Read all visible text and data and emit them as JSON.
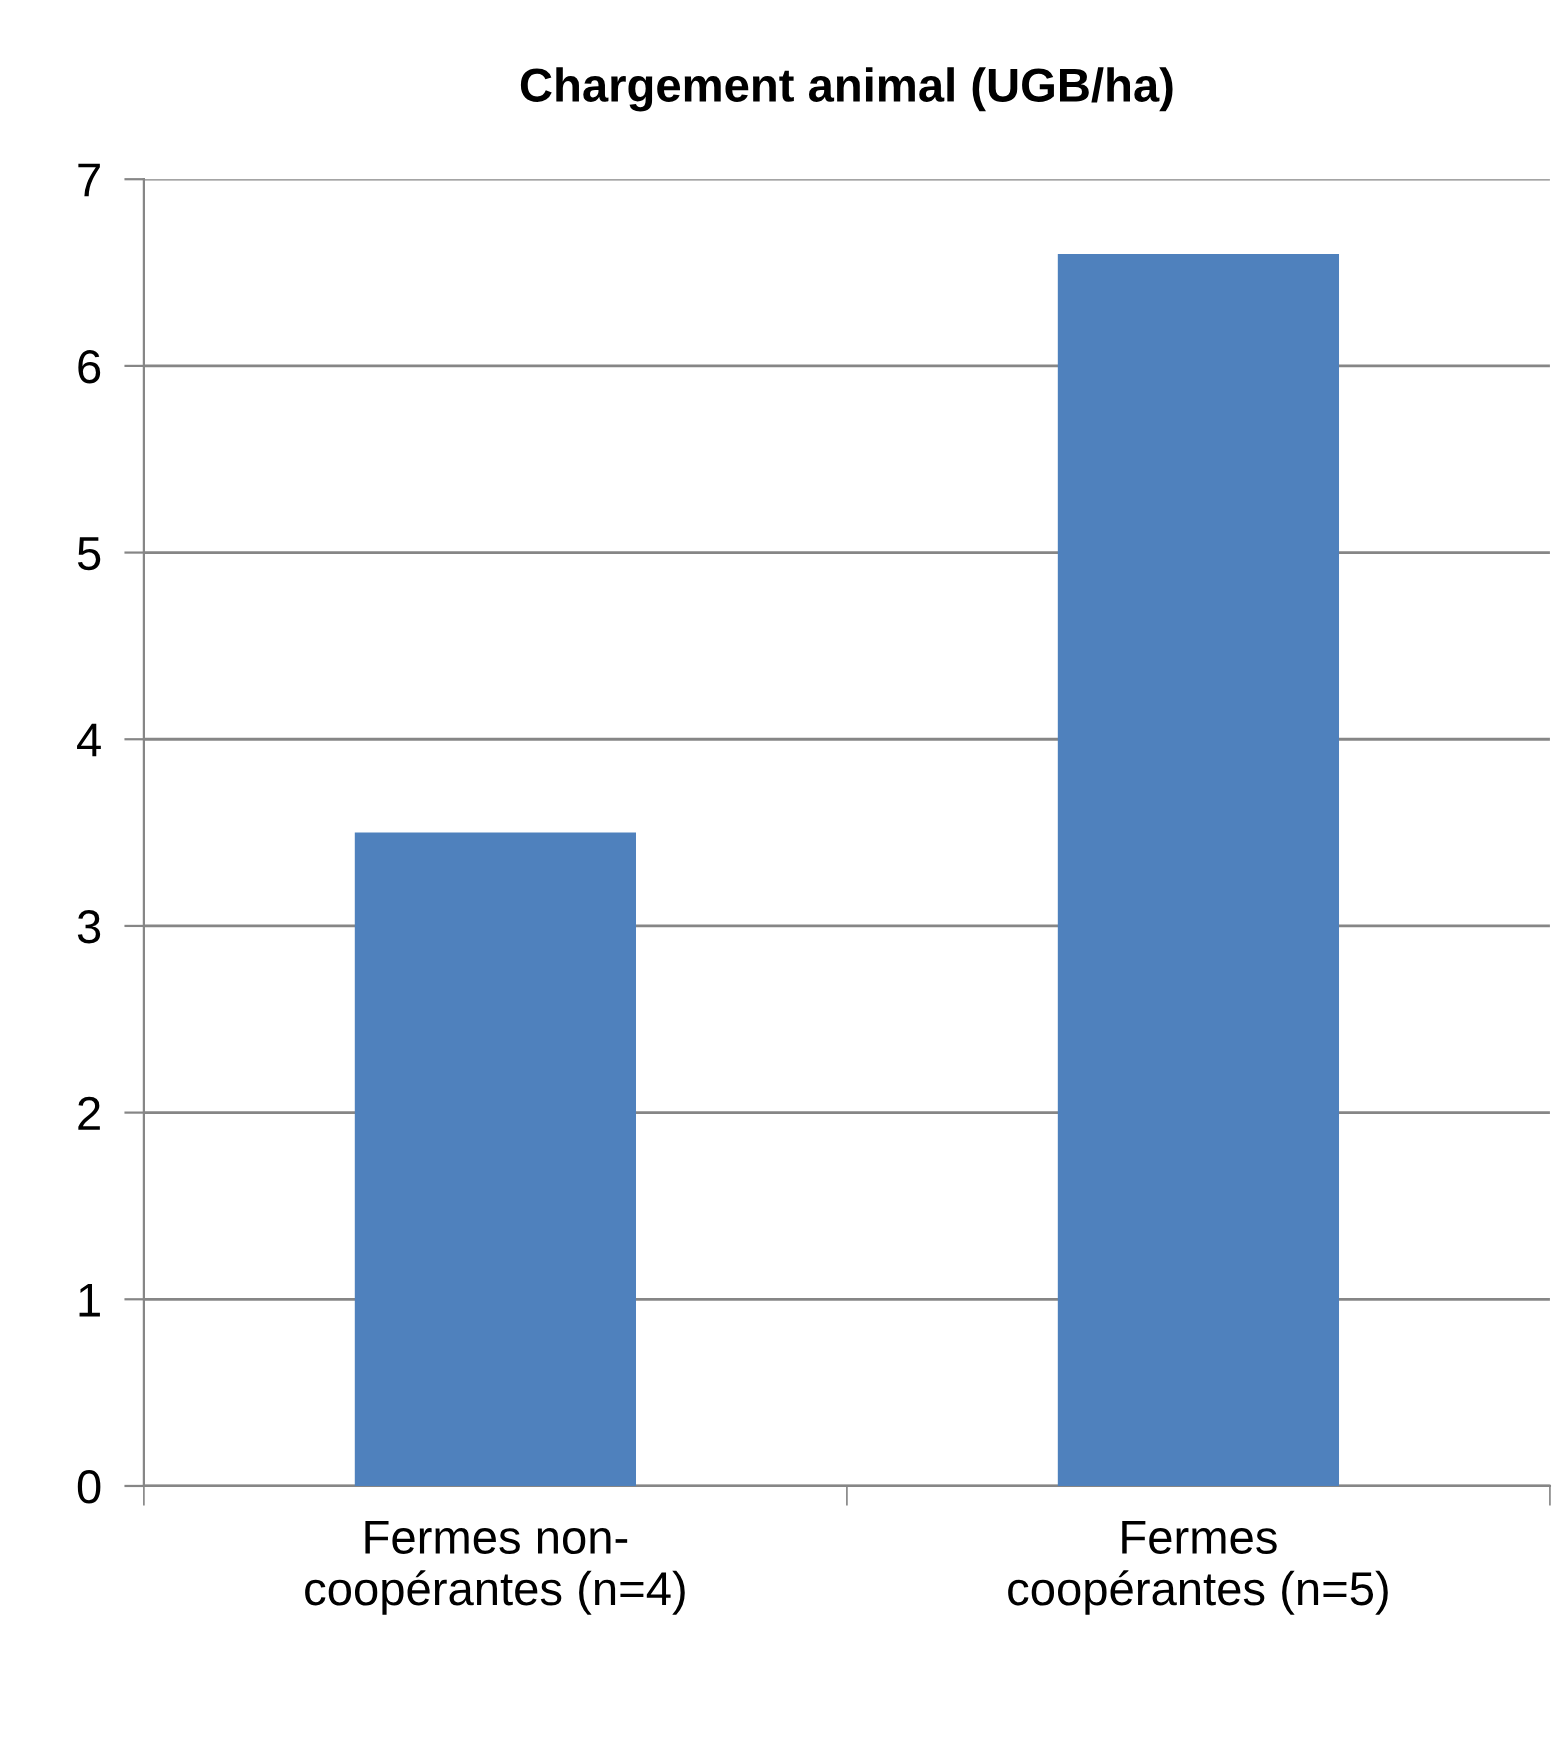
{
  "chart_data": {
    "type": "bar",
    "title": "Chargement animal (UGB/ha)",
    "categories": [
      "Fermes non-\ncoopérantes (n=4)",
      "Fermes\ncoopérantes (n=5)"
    ],
    "values": [
      3.5,
      6.6
    ],
    "color": "#4f81bd",
    "ylim": [
      0,
      7
    ],
    "yticks": [
      0,
      1,
      2,
      3,
      4,
      5,
      6,
      7
    ],
    "grid": "y"
  }
}
